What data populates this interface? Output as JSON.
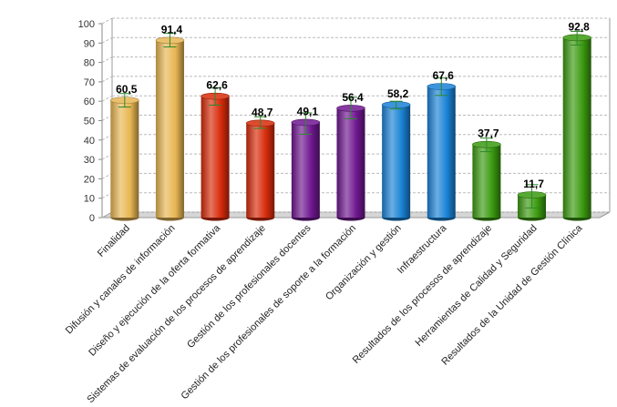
{
  "chart_data": {
    "type": "bar",
    "categories": [
      "Finalidad",
      "Difusión y canales de información",
      "Diseño y ejecución de la oferta formativa",
      "Sistemas de evaluación de los procesos de aprendizaje",
      "Gestión de los profesionales docentes",
      "Gestión de los profesionales de soporte a la formación",
      "Organización y gestión",
      "Infraestructura",
      "Resultados de los procesos de aprendizaje",
      "Herramientas de Calidad y Seguridad",
      "Resultados de la Unidad de Gestión Clínica"
    ],
    "values": [
      60.5,
      91.4,
      62.6,
      48.7,
      49.1,
      56.4,
      58.2,
      67.6,
      37.7,
      11.7,
      92.8
    ],
    "value_labels": [
      "60,5",
      "91,4",
      "62,6",
      "48,7",
      "49,1",
      "56,4",
      "58,2",
      "67,6",
      "37,7",
      "11,7",
      "92,8"
    ],
    "error_low": [
      57,
      88,
      58,
      46,
      43,
      51,
      56,
      63,
      34,
      5,
      89
    ],
    "error_high": [
      64,
      95,
      67,
      52,
      54,
      62,
      60,
      72,
      41,
      17,
      96
    ],
    "bar_colors": [
      "#e8b653",
      "#e8b653",
      "#d72b0a",
      "#d72b0a",
      "#6f1790",
      "#6f1790",
      "#1a82d6",
      "#1a82d6",
      "#3b9a10",
      "#3b9a10",
      "#3b9a10"
    ],
    "ylim": [
      0,
      100
    ],
    "yticks": [
      0,
      10,
      20,
      30,
      40,
      50,
      60,
      70,
      80,
      90,
      100
    ],
    "grid": true,
    "legend": false,
    "error_bar_color": "#2b8a2b",
    "title": "",
    "xlabel": "",
    "ylabel": ""
  }
}
